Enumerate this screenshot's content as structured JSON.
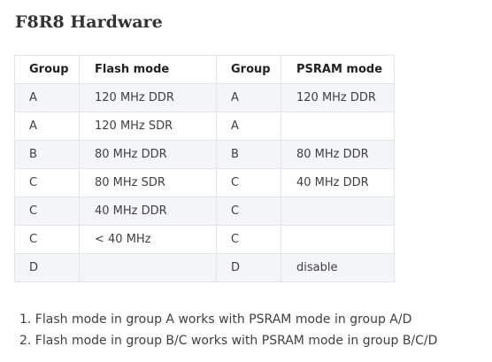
{
  "title": "F8R8 Hardware",
  "table": {
    "headers": [
      "Group",
      "Flash mode",
      "Group",
      "PSRAM mode"
    ],
    "rows": [
      [
        "A",
        "120 MHz DDR",
        "A",
        "120 MHz DDR"
      ],
      [
        "A",
        "120 MHz SDR",
        "A",
        ""
      ],
      [
        "B",
        "80 MHz DDR",
        "B",
        "80 MHz DDR"
      ],
      [
        "C",
        "80 MHz SDR",
        "C",
        "40 MHz DDR"
      ],
      [
        "C",
        "40 MHz DDR",
        "C",
        ""
      ],
      [
        "C",
        "< 40 MHz",
        "C",
        ""
      ],
      [
        "D",
        "",
        "D",
        "disable"
      ]
    ]
  },
  "notes": [
    "1. Flash mode in group A works with PSRAM mode in group A/D",
    "2. Flash mode in group B/C works with PSRAM mode in group B/C/D"
  ]
}
